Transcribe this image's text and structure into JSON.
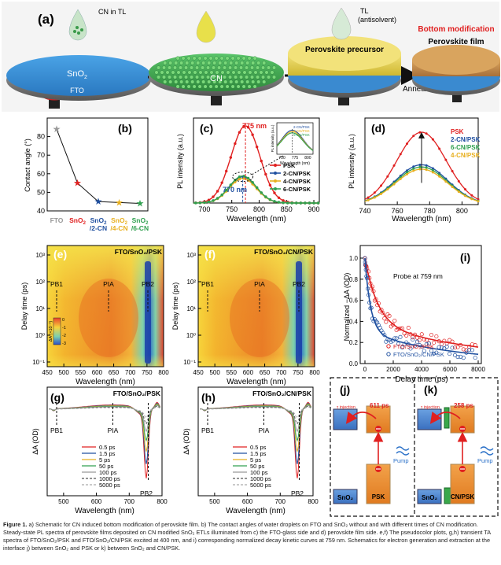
{
  "panel_a": {
    "label": "(a)",
    "cn_in_tl": "CN in TL",
    "tl_line1": "TL",
    "tl_line2": "(antisolvent)",
    "sno2": "SnO",
    "sno2_sub": "2",
    "fto": "FTO",
    "cn": "CN",
    "precursor": "Perovskite precursor",
    "bottom_mod": "Bottom modification",
    "film": "Perovskite film",
    "annealing": "Annealing",
    "colors": {
      "sno2": "#3b8fd6",
      "cn": "#3cae4c",
      "precursor": "#e8d54a",
      "film": "#c98a4a",
      "red": "#e02020"
    }
  },
  "panel_b": {
    "label": "(b)",
    "ylabel": "Contact angle (°)",
    "yticks": [
      "40",
      "50",
      "60",
      "70",
      "80"
    ],
    "cats": [
      {
        "l1": "FTO",
        "l2": "",
        "color": "#999999"
      },
      {
        "l1": "SnO",
        "l1sub": "2",
        "l2": "",
        "color": "#e02020"
      },
      {
        "l1": "SnO",
        "l1sub": "2",
        "l2": "/2-CN",
        "color": "#2050a0"
      },
      {
        "l1": "SnO",
        "l1sub": "2",
        "l2": "/4-CN",
        "color": "#e8b020"
      },
      {
        "l1": "SnO",
        "l1sub": "2",
        "l2": "/6-CN",
        "color": "#30a050"
      }
    ]
  },
  "panel_c": {
    "label": "(c)",
    "ylabel": "PL intensity (a.u.)",
    "xlabel": "Wavelength (nm)",
    "xticks": [
      "700",
      "750",
      "800",
      "850",
      "900"
    ],
    "peak1": "775 nm",
    "peak2": "770 nm",
    "legend": [
      "PSK",
      "2-CN/PSK",
      "4-CN/PSK",
      "6-CN/PSK"
    ],
    "inset_legend": [
      "2-CN/PSK",
      "4-CN/PSK",
      "6-CN/PSK"
    ],
    "inset_xticks": [
      "750",
      "775",
      "800"
    ],
    "inset_ylabel": "PL intensity (a.u.)",
    "inset_xlabel": "Wavelength (nm)"
  },
  "panel_d": {
    "label": "(d)",
    "ylabel": "PL intensity (a.u.)",
    "xlabel": "Wavelength (nm)",
    "xticks": [
      "740",
      "760",
      "780",
      "800"
    ],
    "legend": [
      "PSK",
      "2-CN/PSK",
      "6-CN/PSK",
      "4-CN/PSK"
    ]
  },
  "panel_e": {
    "label": "(e)",
    "title": "FTO/SnO₂/PSK"
  },
  "panel_f": {
    "label": "(f)",
    "title": "FTO/SnO₂/CN/PSK"
  },
  "heatmap": {
    "ylabel": "Delay time (ps)",
    "xlabel": "Wavelength (nm)",
    "xticks": [
      "450",
      "500",
      "550",
      "600",
      "650",
      "700",
      "750",
      "800"
    ],
    "yticks": [
      "10³",
      "10²",
      "10¹",
      "10⁰",
      "10⁻¹"
    ],
    "pb1": "PB1",
    "pia": "PIA",
    "pb2": "PB2",
    "cbar_label": "ΔA (×10⁻³)",
    "cbar_ticks": [
      "0",
      "-1",
      "-2",
      "-3"
    ]
  },
  "panel_i": {
    "label": "(i)",
    "probe": "Probe at 759 nm",
    "ylabel": "Normalized −ΔA (OD)",
    "xlabel": "Delay time (ps)",
    "xticks": [
      "0",
      "2000",
      "4000",
      "6000",
      "8000"
    ],
    "yticks": [
      "0.0",
      "0.2",
      "0.4",
      "0.6",
      "0.8",
      "1.0"
    ],
    "legend": [
      "FTO/SnO₂/PSK",
      "FTO/SnO₂/CN/PSK"
    ]
  },
  "panel_g": {
    "label": "(g)",
    "title": "FTO/SnO₂/PSK"
  },
  "panel_h": {
    "label": "(h)",
    "title": "FTO/SnO₂/CN/PSK"
  },
  "ta": {
    "ylabel": "ΔA (OD)",
    "xlabel": "Wavelength (nm)",
    "xticks": [
      "500",
      "600",
      "700",
      "800"
    ],
    "pb1": "PB1",
    "pia": "PIA",
    "pb2": "PB2",
    "legend": [
      "0.5 ps",
      "1.5 ps",
      "5 ps",
      "50 ps",
      "100 ps",
      "1000 ps",
      "5000 ps"
    ]
  },
  "panel_j": {
    "label": "(j)",
    "inj": "injection",
    "time": "611 ps",
    "pump": "Pump",
    "sno2": "SnO₂",
    "psk": "PSK"
  },
  "panel_k": {
    "label": "(k)",
    "inj": "injection",
    "time": "258 ps",
    "pump": "Pump",
    "sno2": "SnO₂",
    "psk": "CN/PSK"
  },
  "caption": {
    "fig": "Figure 1.",
    "text": " a) Schematic for CN induced bottom modification of perovskite film. b) The contact angles of water droplets on FTO and SnO₂ without and with different times of CN modification. Steady-state PL spectra of perovskite films deposited on CN modified SnO₂ ETLs illuminated from c) the FTO-glass side and d) perovskite film side. e,f) The pseudocolor plots, g,h) transient TA spectra of FTO/SnO₂/PSK and FTO/SnO₂/CN/PSK excited at 400 nm, and i) corresponding normalized decay kinetic curves at 759 nm. Schematics for electron generation and extraction at the interface j) between SnO₂ and PSK or k) between SnO₂ and CN/PSK."
  },
  "chart_data": [
    {
      "type": "line",
      "title": "",
      "xlabel": "",
      "ylabel": "Contact angle (°)",
      "categories": [
        "FTO",
        "SnO2",
        "SnO2/2-CN",
        "SnO2/4-CN",
        "SnO2/6-CN"
      ],
      "values": [
        84,
        55,
        45,
        44.5,
        44
      ],
      "ylim": [
        40,
        90
      ]
    },
    {
      "type": "line",
      "xlabel": "Wavelength (nm)",
      "ylabel": "PL intensity (a.u.)",
      "xlim": [
        680,
        910
      ],
      "series": [
        {
          "name": "PSK",
          "peak": 775,
          "height": 1.0,
          "fwhm": 62,
          "color": "#e02020"
        },
        {
          "name": "2-CN/PSK",
          "peak": 770,
          "height": 0.34,
          "fwhm": 58,
          "color": "#2050a0"
        },
        {
          "name": "4-CN/PSK",
          "peak": 770,
          "height": 0.32,
          "fwhm": 58,
          "color": "#e8b020"
        },
        {
          "name": "6-CN/PSK",
          "peak": 770,
          "height": 0.35,
          "fwhm": 58,
          "color": "#30a050"
        }
      ]
    },
    {
      "type": "line",
      "xlabel": "Wavelength (nm)",
      "ylabel": "PL intensity (a.u.)",
      "xlim": [
        740,
        810
      ],
      "series": [
        {
          "name": "PSK",
          "peak": 775,
          "height": 1.0,
          "fwhm": 36,
          "color": "#e02020"
        },
        {
          "name": "2-CN/PSK",
          "peak": 775,
          "height": 0.55,
          "fwhm": 38,
          "color": "#2050a0"
        },
        {
          "name": "6-CN/PSK",
          "peak": 775,
          "height": 0.52,
          "fwhm": 38,
          "color": "#30a050"
        },
        {
          "name": "4-CN/PSK",
          "peak": 775,
          "height": 0.49,
          "fwhm": 38,
          "color": "#e8b020"
        }
      ]
    },
    {
      "type": "scatter",
      "xlabel": "Delay time (ps)",
      "ylabel": "Normalized -ΔA (OD)",
      "xlim": [
        0,
        8000
      ],
      "ylim": [
        0,
        1.0
      ],
      "series": [
        {
          "name": "FTO/SnO2/PSK",
          "tau": 611,
          "color": "#e02020"
        },
        {
          "name": "FTO/SnO2/CN/PSK",
          "tau": 258,
          "color": "#2050a0"
        }
      ]
    },
    {
      "type": "line",
      "xlabel": "Wavelength (nm)",
      "ylabel": "ΔA (OD)",
      "xlim": [
        450,
        800
      ],
      "series_names": [
        "0.5 ps",
        "1.5 ps",
        "5 ps",
        "50 ps",
        "100 ps",
        "1000 ps",
        "5000 ps"
      ],
      "series_colors": [
        "#e02020",
        "#2050a0",
        "#e8b020",
        "#30a050",
        "#999999",
        "#555555",
        "#aaaaaa"
      ]
    }
  ]
}
